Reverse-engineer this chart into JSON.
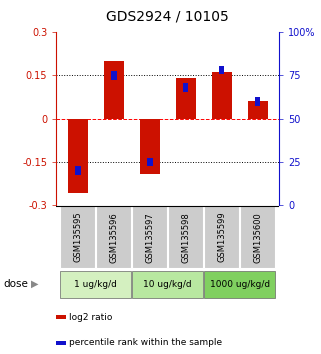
{
  "title": "GDS2924 / 10105",
  "samples": [
    "GSM135595",
    "GSM135596",
    "GSM135597",
    "GSM135598",
    "GSM135599",
    "GSM135600"
  ],
  "log2_ratios": [
    -0.258,
    0.2,
    -0.19,
    0.14,
    0.16,
    0.062
  ],
  "percentile_ranks": [
    20,
    75,
    25,
    68,
    78,
    60
  ],
  "dose_groups": [
    {
      "label": "1 ug/kg/d",
      "cols": [
        0,
        1
      ],
      "color": "#d4f0c0"
    },
    {
      "label": "10 ug/kg/d",
      "cols": [
        2,
        3
      ],
      "color": "#b8e8a0"
    },
    {
      "label": "1000 ug/kg/d",
      "cols": [
        4,
        5
      ],
      "color": "#80d060"
    }
  ],
  "ylim_left": [
    -0.3,
    0.3
  ],
  "ylim_right": [
    0,
    100
  ],
  "yticks_left": [
    -0.3,
    -0.15,
    0,
    0.15,
    0.3
  ],
  "ytick_labels_left": [
    "-0.3",
    "-0.15",
    "0",
    "0.15",
    "0.3"
  ],
  "yticks_right": [
    0,
    25,
    50,
    75,
    100
  ],
  "ytick_labels_right": [
    "0",
    "25",
    "50",
    "75",
    "100%"
  ],
  "hlines": [
    -0.15,
    0.0,
    0.15
  ],
  "hline_styles": [
    "dotted",
    "dashed",
    "dotted"
  ],
  "hline_colors": [
    "black",
    "red",
    "black"
  ],
  "bar_color_red": "#cc1100",
  "bar_color_blue": "#1111cc",
  "bar_width": 0.55,
  "blue_square_size": 0.015,
  "legend_red": "log2 ratio",
  "legend_blue": "percentile rank within the sample",
  "dose_label": "dose",
  "title_fontsize": 10,
  "label_fontsize": 7,
  "sample_label_color": "#cccccc",
  "sample_text_fontsize": 6
}
